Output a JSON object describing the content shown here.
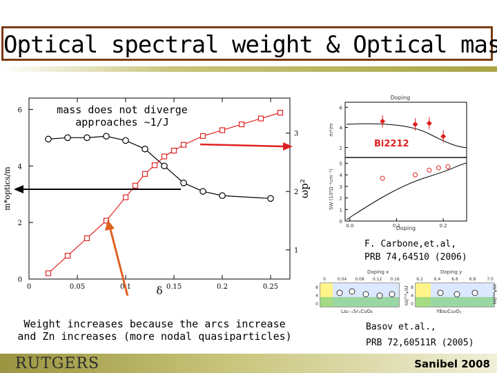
{
  "slide": {
    "title": "Optical spectral weight & Optical mass",
    "footer_left": "RUTGERS",
    "footer_right": "Sanibel 2008"
  },
  "annotations": {
    "mass_note_line1": "mass does not diverge",
    "mass_note_line2": "approaches ~1/J",
    "weight_note_line1": "Weight increases because the arcs increase",
    "weight_note_line2": "and Zn increases (more nodal quasiparticles)"
  },
  "references": {
    "ref1_line1": "F. Carbone,et.al,",
    "ref1_line2": "PRB 74,64510 (2006)",
    "ref2_line1": "Basov et.al.,",
    "ref2_line2": "PRB 72,60511R (2005)"
  },
  "chart_data": [
    {
      "type": "line",
      "xlabel": "δ",
      "ylabel_left": "m*optics/m",
      "ylabel_right": "ωp²",
      "x_ticks": [
        "0",
        "0.05",
        "0.1",
        "0.15",
        "0.2",
        "0.25"
      ],
      "left_ticks": [
        "0",
        "2",
        "4",
        "6"
      ],
      "right_ticks": [
        "1",
        "2",
        "3"
      ],
      "xlim": [
        0,
        0.27
      ],
      "ylim_left": [
        0,
        6.4
      ],
      "ylim_right": [
        0.5,
        3.6
      ],
      "series": [
        {
          "name": "optical mass",
          "axis": "left",
          "color": "#000000",
          "x": [
            0.02,
            0.04,
            0.06,
            0.08,
            0.1,
            0.12,
            0.14,
            0.16,
            0.18,
            0.2,
            0.25
          ],
          "values": [
            4.95,
            5.0,
            5.0,
            5.05,
            4.9,
            4.6,
            4.0,
            3.4,
            3.1,
            2.95,
            2.85
          ]
        },
        {
          "name": "spectral weight",
          "axis": "right",
          "color": "#e02020",
          "x": [
            0.02,
            0.04,
            0.06,
            0.08,
            0.1,
            0.11,
            0.12,
            0.13,
            0.14,
            0.15,
            0.16,
            0.18,
            0.2,
            0.22,
            0.24,
            0.26
          ],
          "values": [
            0.6,
            0.9,
            1.2,
            1.5,
            1.9,
            2.1,
            2.3,
            2.45,
            2.6,
            2.7,
            2.8,
            2.95,
            3.05,
            3.15,
            3.25,
            3.35
          ]
        }
      ]
    },
    {
      "type": "scatter",
      "title": "Doping",
      "xlabel": "Doping",
      "tag": "Bi2212",
      "x_ticks": [
        "0.0",
        "0.1",
        "0.2"
      ],
      "upper_ylabel": "m*/m",
      "upper_ticks": [
        "2",
        "4",
        "6"
      ],
      "lower_ylabel": "SW (10⁶Ω⁻¹cm⁻²)",
      "lower_ticks": [
        "0",
        "1",
        "2",
        "3",
        "4",
        "5"
      ],
      "upper_points_x": [
        0.07,
        0.14,
        0.17,
        0.2
      ],
      "upper_points_y": [
        4.6,
        4.3,
        4.4,
        3.1
      ],
      "lower_points_x": [
        0.07,
        0.14,
        0.17,
        0.19,
        0.21
      ],
      "lower_points_y": [
        3.7,
        4.0,
        4.4,
        4.6,
        4.7
      ]
    },
    {
      "type": "scatter",
      "panels": [
        {
          "title": "Doping x",
          "compound": "La₂₋ₓSrₓCuO₄",
          "x_ticks": [
            "0",
            "0.04",
            "0.08",
            "0.12",
            "0.16"
          ],
          "ylabel": "m*ₑₓ/m",
          "y_ticks": [
            "8",
            "4",
            "0"
          ]
        },
        {
          "title": "Doping y",
          "compound": "YBa₂Cu₃Oᵧ",
          "x_ticks": [
            "6.2",
            "6.4",
            "6.6",
            "6.8",
            "7.0"
          ],
          "ylabel": "m*ₑₓ/m",
          "y_ticks": [
            "8",
            "4",
            "0"
          ]
        }
      ]
    }
  ]
}
